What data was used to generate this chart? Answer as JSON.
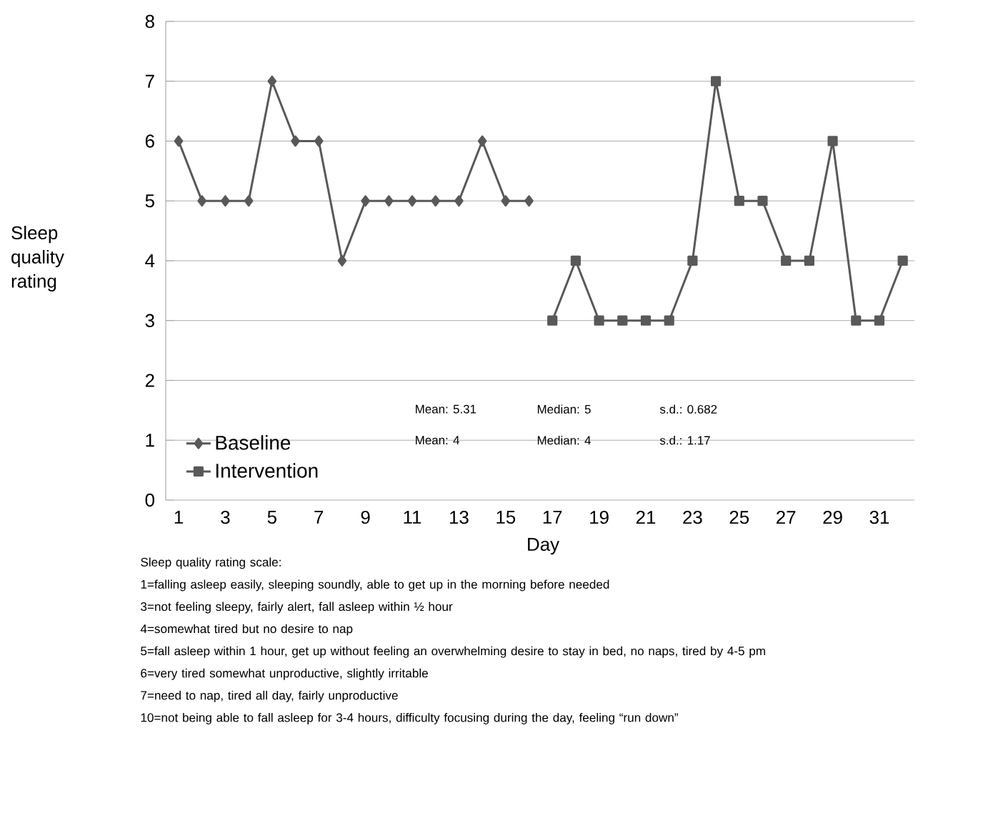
{
  "chart_data": {
    "type": "line",
    "xlabel": "Day",
    "ylabel": "Sleep quality rating",
    "categories": [
      "1",
      null,
      "3",
      null,
      "5",
      null,
      "7",
      null,
      "9",
      null,
      "11",
      null,
      "13",
      null,
      "15",
      null,
      "17",
      null,
      "19",
      null,
      "21",
      null,
      "23",
      null,
      "25",
      null,
      "27",
      null,
      "29",
      null,
      "31",
      null
    ],
    "series": [
      {
        "name": "Baseline",
        "color": "#595959",
        "marker": "diamond",
        "values": [
          6,
          5,
          5,
          5,
          7,
          6,
          6,
          4,
          5,
          5,
          5,
          5,
          5,
          6,
          5,
          5,
          null,
          null,
          null,
          null,
          null,
          null,
          null,
          null,
          null,
          null,
          null,
          null,
          null,
          null,
          null,
          null
        ]
      },
      {
        "name": "Intervention",
        "color": "#595959",
        "marker": "square",
        "values": [
          null,
          null,
          null,
          null,
          null,
          null,
          null,
          null,
          null,
          null,
          null,
          null,
          null,
          null,
          null,
          null,
          3,
          4,
          3,
          3,
          3,
          3,
          4,
          7,
          5,
          5,
          4,
          4,
          6,
          3,
          3,
          4
        ]
      }
    ],
    "ylim": [
      0,
      8
    ],
    "yticks": [
      0,
      1,
      2,
      3,
      4,
      5,
      6,
      7,
      8
    ],
    "grid": "y",
    "legend": "bottom left",
    "annotations": [
      "Mean:  5.31",
      "Median: 5",
      "s.d.: 0.682",
      "Mean: 4",
      "Median: 4",
      "s.d.: 1.17",
      "Sleep quality rating scale:",
      "1=falling asleep easily, sleeping soundly, able to get up in the morning before needed",
      "3=not feeling sleepy, fairly alert, fall asleep within ½ hour",
      "4=somewhat tired but no desire to nap",
      "5=fall asleep within 1 hour, get up without feeling an overwhelming desire to stay in bed, no naps, tired by 4-5 pm",
      "6=very tired somewhat unproductive,  slightly irritable",
      "7=need to nap, tired all day, fairly unproductive",
      "10=not being able to fall asleep for 3-4 hours, difficulty focusing during the day, feeling “run down”"
    ]
  }
}
